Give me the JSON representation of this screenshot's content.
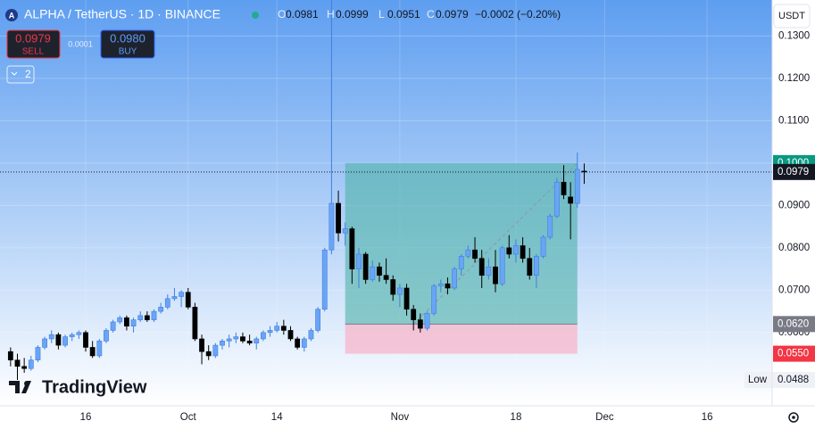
{
  "chart_data": {
    "type": "candlestick",
    "ui": {
      "symbol_icon": "A",
      "symbol": "ALPHA / TetherUS · 1D · BINANCE",
      "ohlc_letters": [
        "O",
        "H",
        "L",
        "C"
      ],
      "change": "−0.0002 (−0.20%)",
      "sell": {
        "price": "0.0979",
        "label": "SELL"
      },
      "spread": "0.0001",
      "buy": {
        "price": "0.0980",
        "label": "BUY"
      },
      "indicators": "2",
      "currency": "USDT",
      "brand": "TradingView"
    },
    "categories": [
      null,
      null,
      null,
      null,
      null,
      null,
      null,
      null,
      null,
      null,
      null,
      "16",
      null,
      null,
      null,
      null,
      null,
      null,
      null,
      null,
      null,
      null,
      null,
      null,
      null,
      null,
      "Oct",
      null,
      null,
      null,
      null,
      null,
      null,
      null,
      null,
      null,
      null,
      null,
      null,
      "14",
      null,
      null,
      null,
      null,
      null,
      null,
      null,
      null,
      null,
      null,
      null,
      null,
      null,
      null,
      null,
      null,
      null,
      "Nov",
      null,
      null,
      null,
      null,
      null,
      null,
      null,
      null,
      null,
      null,
      null,
      null,
      null,
      null,
      null,
      null,
      "18",
      null,
      null,
      null,
      null,
      null,
      null,
      null,
      null,
      null,
      null,
      null,
      null,
      "Dec",
      null,
      null,
      null,
      null,
      null,
      null,
      null,
      null,
      null,
      null,
      null,
      null,
      null,
      null,
      "16",
      null,
      null,
      null,
      null,
      null,
      null,
      null,
      null,
      null
    ],
    "open": [
      0.0555,
      0.0535,
      0.052,
      0.0515,
      0.0535,
      0.0565,
      0.0585,
      0.0595,
      0.057,
      0.059,
      0.0595,
      0.06,
      0.0565,
      0.0545,
      0.058,
      0.0605,
      0.0625,
      0.0635,
      0.0615,
      0.063,
      0.064,
      0.063,
      0.065,
      0.066,
      0.068,
      0.0685,
      0.0695,
      0.066,
      0.0585,
      0.0555,
      0.0545,
      0.057,
      0.058,
      0.0585,
      0.059,
      0.058,
      0.0575,
      0.0585,
      0.06,
      0.0605,
      0.0615,
      0.0605,
      0.0585,
      0.0565,
      0.0585,
      0.0605,
      0.0655,
      0.0795,
      0.0905,
      0.0835,
      0.0845,
      0.075,
      0.0785,
      0.0725,
      0.0755,
      0.0735,
      0.0725,
      0.069,
      0.0705,
      0.0655,
      0.063,
      0.061,
      0.0645,
      0.071,
      0.0715,
      0.0705,
      0.075,
      0.078,
      0.0795,
      0.0775,
      0.0735,
      0.0755,
      0.0715,
      0.08,
      0.0785,
      0.0805,
      0.0775,
      0.0735,
      0.078,
      0.0825,
      0.0875,
      0.0955,
      0.092,
      0.0905,
      0.0981,
      null,
      null,
      null,
      null,
      null,
      null,
      null,
      null,
      null,
      null,
      null,
      null,
      null,
      null,
      null,
      null,
      null,
      null,
      null,
      null,
      null,
      null,
      null,
      null,
      null,
      null,
      null
    ],
    "high": [
      0.0565,
      0.055,
      0.054,
      0.0545,
      0.057,
      0.059,
      0.0605,
      0.06,
      0.0595,
      0.06,
      0.0605,
      0.0605,
      0.058,
      0.0585,
      0.061,
      0.063,
      0.064,
      0.064,
      0.0635,
      0.065,
      0.065,
      0.0655,
      0.067,
      0.069,
      0.0705,
      0.07,
      0.0705,
      0.067,
      0.0595,
      0.057,
      0.0575,
      0.0585,
      0.0595,
      0.06,
      0.06,
      0.0595,
      0.059,
      0.0605,
      0.0615,
      0.0625,
      0.063,
      0.0615,
      0.059,
      0.059,
      0.061,
      0.066,
      0.08,
      0.1385,
      0.0935,
      0.086,
      0.085,
      0.08,
      0.079,
      0.077,
      0.0765,
      0.0775,
      0.0735,
      0.0715,
      0.0715,
      0.0665,
      0.0645,
      0.065,
      0.0715,
      0.0725,
      0.073,
      0.0755,
      0.0785,
      0.0805,
      0.0825,
      0.0795,
      0.0775,
      0.0795,
      0.0805,
      0.083,
      0.082,
      0.0825,
      0.08,
      0.0785,
      0.083,
      0.088,
      0.0965,
      0.0995,
      0.0955,
      0.1025,
      0.0999,
      null,
      null,
      null,
      null,
      null,
      null,
      null,
      null,
      null,
      null,
      null,
      null,
      null,
      null,
      null,
      null,
      null,
      null,
      null,
      null,
      null,
      null,
      null,
      null,
      null,
      null,
      null
    ],
    "low": [
      0.052,
      0.0488,
      0.0505,
      0.051,
      0.053,
      0.056,
      0.0575,
      0.056,
      0.0565,
      0.058,
      0.0585,
      0.0555,
      0.054,
      0.054,
      0.0575,
      0.06,
      0.062,
      0.0605,
      0.06,
      0.0625,
      0.0625,
      0.0625,
      0.0645,
      0.0655,
      0.0675,
      0.066,
      0.0655,
      0.058,
      0.0525,
      0.0535,
      0.054,
      0.056,
      0.0565,
      0.0575,
      0.0575,
      0.057,
      0.056,
      0.058,
      0.059,
      0.06,
      0.0595,
      0.058,
      0.056,
      0.0555,
      0.058,
      0.06,
      0.065,
      0.0785,
      0.0815,
      0.0805,
      0.0715,
      0.0705,
      0.0715,
      0.072,
      0.072,
      0.0715,
      0.0675,
      0.066,
      0.064,
      0.0605,
      0.06,
      0.0605,
      0.064,
      0.0695,
      0.069,
      0.07,
      0.0735,
      0.0775,
      0.0765,
      0.0705,
      0.0725,
      0.0695,
      0.071,
      0.0775,
      0.0765,
      0.0765,
      0.0725,
      0.0705,
      0.0775,
      0.082,
      0.087,
      0.0915,
      0.082,
      0.0895,
      0.0951,
      null,
      null,
      null,
      null,
      null,
      null,
      null,
      null,
      null,
      null,
      null,
      null,
      null,
      null,
      null,
      null,
      null,
      null,
      null,
      null,
      null,
      null,
      null,
      null,
      null,
      null,
      null
    ],
    "close": [
      0.0535,
      0.052,
      0.0515,
      0.0535,
      0.0565,
      0.0585,
      0.0595,
      0.057,
      0.059,
      0.0595,
      0.06,
      0.0565,
      0.0545,
      0.058,
      0.0605,
      0.0625,
      0.0635,
      0.0615,
      0.063,
      0.064,
      0.063,
      0.065,
      0.066,
      0.068,
      0.0685,
      0.0695,
      0.066,
      0.0585,
      0.0555,
      0.0545,
      0.057,
      0.058,
      0.0585,
      0.059,
      0.058,
      0.0575,
      0.0585,
      0.06,
      0.0605,
      0.0615,
      0.0605,
      0.0585,
      0.0565,
      0.0585,
      0.0605,
      0.0655,
      0.0795,
      0.0905,
      0.0835,
      0.0845,
      0.075,
      0.0785,
      0.0725,
      0.0755,
      0.0735,
      0.0725,
      0.069,
      0.0705,
      0.0655,
      0.063,
      0.061,
      0.0645,
      0.071,
      0.0715,
      0.0705,
      0.075,
      0.078,
      0.0795,
      0.0775,
      0.0735,
      0.0755,
      0.0715,
      0.08,
      0.0785,
      0.0805,
      0.0775,
      0.0735,
      0.078,
      0.0825,
      0.0875,
      0.0955,
      0.0925,
      0.0905,
      0.0985,
      0.0979,
      null,
      null,
      null,
      null,
      null,
      null,
      null,
      null,
      null,
      null,
      null,
      null,
      null,
      null,
      null,
      null,
      null,
      null,
      null,
      null,
      null,
      null,
      null,
      null,
      null,
      null,
      null
    ],
    "up_color": "#6aa5f5",
    "down_color": "#000000",
    "ylim": [
      0.0427,
      0.1385
    ],
    "yticks": [
      {
        "value": 0.06,
        "label": "0.0600"
      },
      {
        "value": 0.07,
        "label": "0.0700"
      },
      {
        "value": 0.08,
        "label": "0.0800"
      },
      {
        "value": 0.09,
        "label": "0.0900"
      },
      {
        "value": 0.1,
        "label": "0.1000"
      },
      {
        "value": 0.11,
        "label": "0.1100"
      },
      {
        "value": 0.12,
        "label": "0.1200"
      },
      {
        "value": 0.13,
        "label": "0.1300"
      }
    ],
    "grid": true,
    "position": {
      "from": 49,
      "to": 83,
      "target": {
        "value": 0.1,
        "label": "0.1000"
      },
      "entry": {
        "value": 0.062,
        "label": "0.0620"
      },
      "stop": {
        "value": 0.055,
        "label": "0.0550"
      }
    },
    "last_price": {
      "value": 0.0979,
      "label": "0.0979"
    },
    "low_marker": {
      "label": "Low",
      "value": {
        "value": 0.0488,
        "label": "0.0488"
      }
    }
  }
}
